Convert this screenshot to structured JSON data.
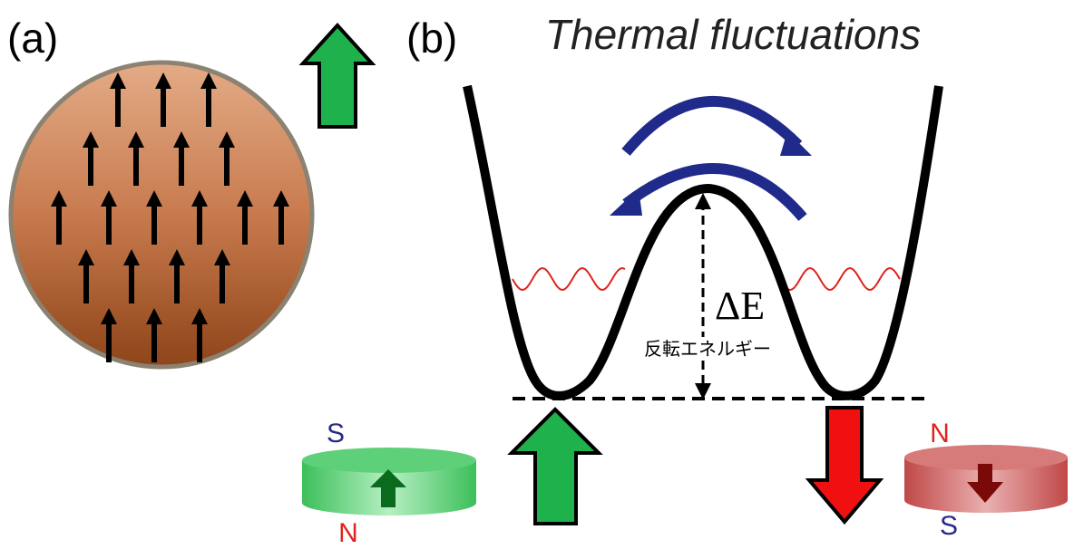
{
  "panel_a": {
    "label": "(a)"
  },
  "panel_b": {
    "label": "(b)",
    "title": "Thermal fluctuations",
    "barrier_symbol": "ΔE",
    "barrier_caption": "反転エネルギー"
  },
  "magnet_left": {
    "top_pole": "S",
    "bottom_pole": "N"
  },
  "magnet_right": {
    "top_pole": "N",
    "bottom_pole": "S"
  }
}
